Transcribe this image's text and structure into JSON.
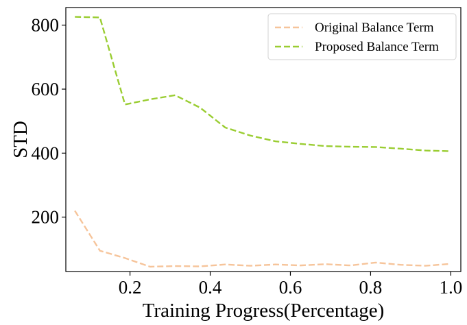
{
  "chart_data": {
    "type": "line",
    "title": "",
    "xlabel": "Training Progress(Percentage)",
    "ylabel": "STD",
    "xlim": [
      0.04,
      1.025
    ],
    "ylim": [
      30,
      855
    ],
    "xticks": [
      0.2,
      0.4,
      0.6,
      0.8,
      1.0
    ],
    "xtick_labels": [
      "0.2",
      "0.4",
      "0.6",
      "0.8",
      "1.0"
    ],
    "yticks": [
      200,
      400,
      600,
      800
    ],
    "ytick_labels": [
      "200",
      "400",
      "600",
      "800"
    ],
    "grid": false,
    "legend_position": "top-right",
    "series": [
      {
        "name": "Original Balance Term",
        "color": "#f6c49a",
        "style": "dashed",
        "x": [
          0.0625,
          0.125,
          0.1875,
          0.25,
          0.3125,
          0.375,
          0.4375,
          0.5,
          0.5625,
          0.625,
          0.6875,
          0.75,
          0.8125,
          0.875,
          0.9375,
          1.0
        ],
        "y": [
          220,
          95,
          72,
          45,
          47,
          46,
          52,
          48,
          52,
          49,
          53,
          49,
          58,
          51,
          48,
          54
        ]
      },
      {
        "name": "Proposed Balance Term",
        "color": "#9acd32",
        "style": "dashed",
        "x": [
          0.0625,
          0.125,
          0.1875,
          0.25,
          0.3125,
          0.375,
          0.4375,
          0.5,
          0.5625,
          0.625,
          0.6875,
          0.75,
          0.8125,
          0.875,
          0.9375,
          1.0
        ],
        "y": [
          826,
          824,
          552,
          568,
          581,
          542,
          480,
          455,
          437,
          429,
          422,
          420,
          419,
          414,
          408,
          406
        ]
      }
    ]
  }
}
